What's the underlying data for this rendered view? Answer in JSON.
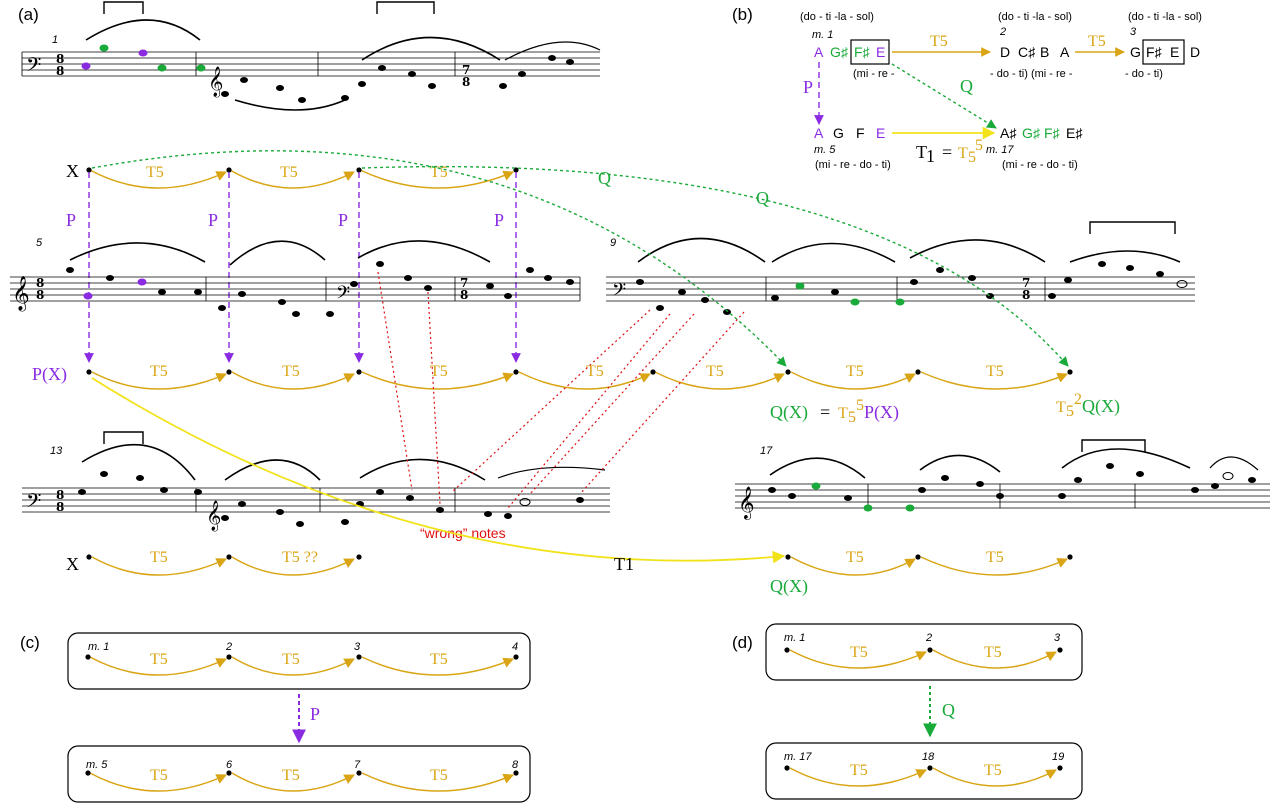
{
  "colors": {
    "transposition": "#d9a514",
    "p_relation": "#8a2be2",
    "q_relation": "#1aaa3a",
    "t1_relation": "#f2e21a",
    "wrong_notes": "#e01010",
    "dot": "#000000"
  },
  "panels": {
    "a": "(a)",
    "b": "(b)",
    "c": "(c)",
    "d": "(d)"
  },
  "measure_numbers": {
    "m1": "1",
    "m5": "5",
    "m9": "9",
    "m13": "13",
    "m17": "17"
  },
  "a": {
    "row1": {
      "start": "X",
      "arcs": [
        "T5",
        "T5",
        "T5"
      ],
      "p_labels": [
        "P",
        "P",
        "P",
        "P"
      ]
    },
    "row2": {
      "start": "P(X)",
      "arcs": [
        "T5",
        "T5",
        "T5",
        "T5",
        "T5",
        "T5",
        "T5"
      ],
      "qx_eq": "Q(X) = T5 5 P(X)",
      "qx_eq_parts": [
        "Q(X)",
        "=",
        "T",
        "5",
        "5",
        "P(X)"
      ],
      "t52qx": [
        "T",
        "5",
        "2",
        "Q(X)"
      ]
    },
    "row3": {
      "start": "X",
      "arcs": [
        "T5",
        "T5 ??",
        "T5",
        "T5"
      ],
      "qx": "Q(X)",
      "t1": "T1"
    },
    "q_labels": [
      "Q",
      "Q"
    ],
    "wrong_notes": "“wrong” notes"
  },
  "b": {
    "syllables_top_left": "(do - ti -la - sol)",
    "syllables_top_mid": "(do - ti -la - sol)",
    "syllables_top_right": "(do - ti -la - sol)",
    "m1": "m. 1",
    "m2": "2",
    "m3": "3",
    "m5": "m. 5",
    "m17": "m. 17",
    "row1_notes": [
      "A",
      "G♯",
      "F♯",
      "E"
    ],
    "row1_sub": "(mi - re -",
    "mid_notes": [
      "D",
      "C♯",
      "B",
      "A"
    ],
    "mid_sub": "- do - ti)  (mi - re -",
    "right_notes": [
      "G",
      "F♯",
      "E",
      "D"
    ],
    "right_sub": "- do - ti)",
    "row2_notes": [
      "A",
      "G",
      "F",
      "E"
    ],
    "row2_sub": "(mi - re - do - ti)",
    "m17_notes": [
      "A♯",
      "G♯",
      "F♯",
      "E♯"
    ],
    "m17_sub": "(mi - re - do - ti)",
    "t5": "T5",
    "p": "P",
    "q": "Q",
    "t1_eq": [
      "T",
      "1",
      "=",
      "T",
      "5",
      "5"
    ]
  },
  "c": {
    "top": {
      "labels": [
        "m. 1",
        "2",
        "3",
        "4"
      ],
      "arcs": [
        "T5",
        "T5",
        "T5"
      ]
    },
    "bottom": {
      "labels": [
        "m. 5",
        "6",
        "7",
        "8"
      ],
      "arcs": [
        "T5",
        "T5",
        "T5"
      ]
    },
    "p": "P"
  },
  "d": {
    "top": {
      "labels": [
        "m. 1",
        "2",
        "3"
      ],
      "arcs": [
        "T5",
        "T5"
      ]
    },
    "bottom": {
      "labels": [
        "m. 17",
        "18",
        "19"
      ],
      "arcs": [
        "T5",
        "T5"
      ]
    },
    "q": "Q"
  }
}
